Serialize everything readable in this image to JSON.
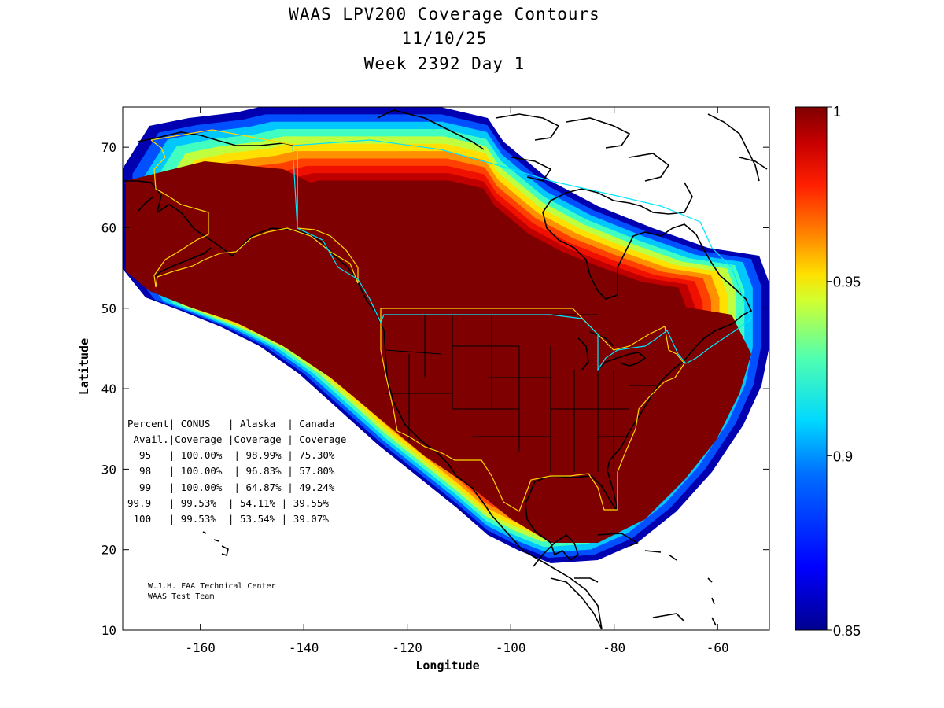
{
  "title": {
    "line1": "WAAS LPV200 Coverage Contours",
    "line2": "11/10/25",
    "line3": "Week 2392 Day 1"
  },
  "map": {
    "xlabel": "Longitude",
    "ylabel": "Latitude",
    "lon_range": [
      -175,
      -50
    ],
    "lat_range": [
      10,
      75
    ],
    "x_ticks": [
      -160,
      -140,
      -120,
      -100,
      -80,
      -60
    ],
    "y_ticks": [
      10,
      20,
      30,
      40,
      50,
      60,
      70
    ],
    "x_tick_labels": [
      "-160",
      "-140",
      "-120",
      "-100",
      "-80",
      "-60"
    ],
    "y_tick_labels": [
      "10",
      "20",
      "30",
      "40",
      "50",
      "60",
      "70"
    ]
  },
  "colorbar": {
    "min": 0.85,
    "max": 1,
    "ticks": [
      0.85,
      0.9,
      0.95,
      1
    ],
    "tick_labels": [
      "0.85",
      "0.9",
      "0.95",
      "1"
    ],
    "colormap": "jet"
  },
  "contour_bands": [
    {
      "level": 0.86,
      "color": "#0000b0"
    },
    {
      "level": 0.88,
      "color": "#0050ff"
    },
    {
      "level": 0.9,
      "color": "#00c8ff"
    },
    {
      "level": 0.92,
      "color": "#40ffc0"
    },
    {
      "level": 0.94,
      "color": "#c0ff40"
    },
    {
      "level": 0.95,
      "color": "#ffe000"
    },
    {
      "level": 0.96,
      "color": "#ff9000"
    },
    {
      "level": 0.97,
      "color": "#ff4000"
    },
    {
      "level": 0.98,
      "color": "#f01000"
    },
    {
      "level": 0.99,
      "color": "#c00000"
    },
    {
      "level": 1.0,
      "color": "#7f0000"
    }
  ],
  "table": {
    "header1": "Percent| CONUS   | Alaska  | Canada",
    "header2": " Avail.|Coverage |Coverage | Coverage",
    "separator": "------------------------------------",
    "rows": [
      "  95   | 100.00%  | 98.99% | 75.30%",
      "  98   | 100.00%  | 96.83% | 57.80%",
      "  99   | 100.00%  | 64.87% | 49.24%",
      "99.9   | 99.53%  | 54.11% | 39.55%",
      " 100   | 99.53%  | 53.54% | 39.07%"
    ]
  },
  "credits": {
    "line1": "W.J.H. FAA Technical Center",
    "line2": "WAAS Test Team"
  },
  "colors": {
    "coastline": "#000000",
    "conus_outline": "#ffd700",
    "canada_outline": "#00e5ff",
    "background": "#ffffff"
  }
}
